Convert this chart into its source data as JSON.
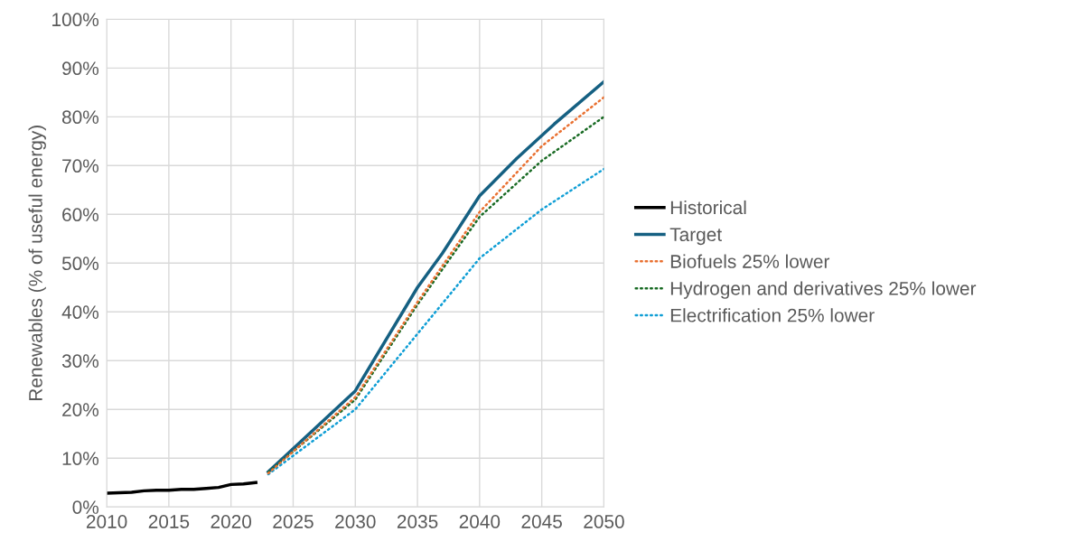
{
  "chart_data": {
    "type": "line",
    "ylabel": "Renewables (% of useful energy)",
    "xlim": [
      2010,
      2050
    ],
    "xticks": [
      2010,
      2015,
      2020,
      2025,
      2030,
      2035,
      2040,
      2045,
      2050
    ],
    "ylim": [
      0,
      100
    ],
    "yticks": [
      {
        "value": 0,
        "label": "0%"
      },
      {
        "value": 10,
        "label": "10%"
      },
      {
        "value": 20,
        "label": "20%"
      },
      {
        "value": 30,
        "label": "30%"
      },
      {
        "value": 40,
        "label": "40%"
      },
      {
        "value": 50,
        "label": "50%"
      },
      {
        "value": 60,
        "label": "60%"
      },
      {
        "value": 70,
        "label": "70%"
      },
      {
        "value": 80,
        "label": "80%"
      },
      {
        "value": 90,
        "label": "90%"
      },
      {
        "value": 100,
        "label": "100%"
      }
    ],
    "grid": true,
    "legend": "right",
    "series": [
      {
        "name": "Historical",
        "color": "#000000",
        "line_style": "solid",
        "x": [
          2010,
          2012,
          2013,
          2014,
          2015,
          2016,
          2017,
          2018,
          2019,
          2020,
          2021,
          2022
        ],
        "values": [
          2.8,
          3.0,
          3.3,
          3.4,
          3.4,
          3.6,
          3.6,
          3.8,
          4.0,
          4.6,
          4.7,
          5.0
        ]
      },
      {
        "name": "Target",
        "color": "#156082",
        "line_style": "solid",
        "x": [
          2023,
          2030,
          2035,
          2037,
          2040,
          2043,
          2046,
          2050
        ],
        "values": [
          7.2,
          23.8,
          45,
          52,
          63.8,
          71.5,
          78.5,
          87.2
        ]
      },
      {
        "name": "Biofuels 25% lower",
        "color": "#e97132",
        "line_style": "dotted",
        "x": [
          2023,
          2030,
          2035,
          2040,
          2045,
          2050
        ],
        "values": [
          6.9,
          22.5,
          42,
          60.5,
          74,
          84
        ]
      },
      {
        "name": "Hydrogen and derivatives 25% lower",
        "color": "#196b24",
        "line_style": "dotted",
        "x": [
          2023,
          2030,
          2035,
          2040,
          2045,
          2050
        ],
        "values": [
          7.1,
          22,
          41.5,
          59.5,
          71,
          80
        ]
      },
      {
        "name": "Electrification 25% lower",
        "color": "#0f9ed5",
        "line_style": "dotted",
        "x": [
          2023,
          2030,
          2035,
          2040,
          2045,
          2050
        ],
        "values": [
          6.7,
          20,
          35.5,
          51,
          61,
          69.3
        ]
      }
    ]
  }
}
